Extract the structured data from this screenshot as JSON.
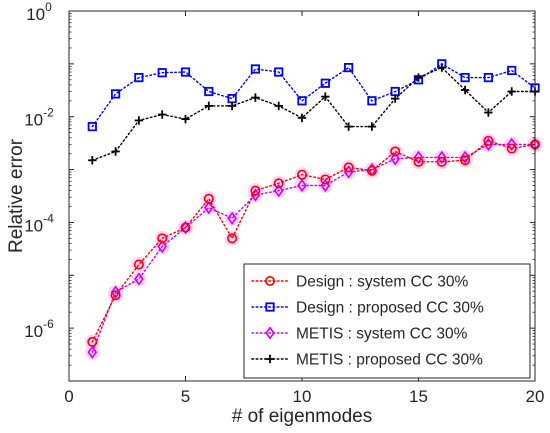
{
  "chart_data": {
    "type": "line",
    "xlabel": "# of eigenmodes",
    "ylabel": "Relative error",
    "xlim": [
      0,
      20
    ],
    "ylim": [
      1e-07,
      1
    ],
    "yscale": "log",
    "xticks": [
      0,
      5,
      10,
      15,
      20
    ],
    "xtick_labels": [
      "0",
      "5",
      "10",
      "15",
      "20"
    ],
    "yticks": [
      1e-06,
      0.0001,
      0.01,
      1
    ],
    "ytick_labels": [
      {
        "base": "10",
        "exp": "-6"
      },
      {
        "base": "10",
        "exp": "-4"
      },
      {
        "base": "10",
        "exp": "-2"
      },
      {
        "base": "10",
        "exp": "0"
      }
    ],
    "grid": false,
    "legend_position": "bottom-right",
    "x": [
      1,
      2,
      3,
      4,
      5,
      6,
      7,
      8,
      9,
      10,
      11,
      12,
      13,
      14,
      15,
      16,
      17,
      18,
      19,
      20
    ],
    "series": [
      {
        "name": "Design : system CC 30%",
        "color": "#ff0000",
        "marker": "circle",
        "values": [
          5.5e-07,
          4.2e-06,
          1.6e-05,
          5e-05,
          8e-05,
          0.00028,
          5e-05,
          0.0004,
          0.00055,
          0.0008,
          0.00065,
          0.0011,
          0.00095,
          0.0022,
          0.0014,
          0.0014,
          0.0015,
          0.0035,
          0.0025,
          0.003
        ]
      },
      {
        "name": "Design : proposed CC 30%",
        "color": "#0000ff",
        "marker": "square",
        "values": [
          0.0065,
          0.027,
          0.055,
          0.068,
          0.07,
          0.03,
          0.022,
          0.08,
          0.07,
          0.02,
          0.043,
          0.085,
          0.02,
          0.03,
          0.05,
          0.1,
          0.055,
          0.055,
          0.075,
          0.035
        ]
      },
      {
        "name": "METIS : system CC 30%",
        "color": "#cc00ff",
        "marker": "diamond",
        "values": [
          3.5e-07,
          4.8e-06,
          8.5e-06,
          3.5e-05,
          8e-05,
          0.00019,
          0.00012,
          0.00033,
          0.0004,
          0.0005,
          0.0005,
          0.0009,
          0.001,
          0.0016,
          0.0017,
          0.0017,
          0.0017,
          0.003,
          0.003,
          0.003
        ]
      },
      {
        "name": "METIS : proposed CC 30%",
        "color": "#000000",
        "marker": "plus",
        "values": [
          0.0015,
          0.0022,
          0.0085,
          0.011,
          0.009,
          0.016,
          0.016,
          0.023,
          0.016,
          0.0095,
          0.024,
          0.0065,
          0.0065,
          0.022,
          0.055,
          0.085,
          0.032,
          0.012,
          0.03,
          0.03
        ]
      }
    ],
    "highlight_color": "#ffccff"
  }
}
